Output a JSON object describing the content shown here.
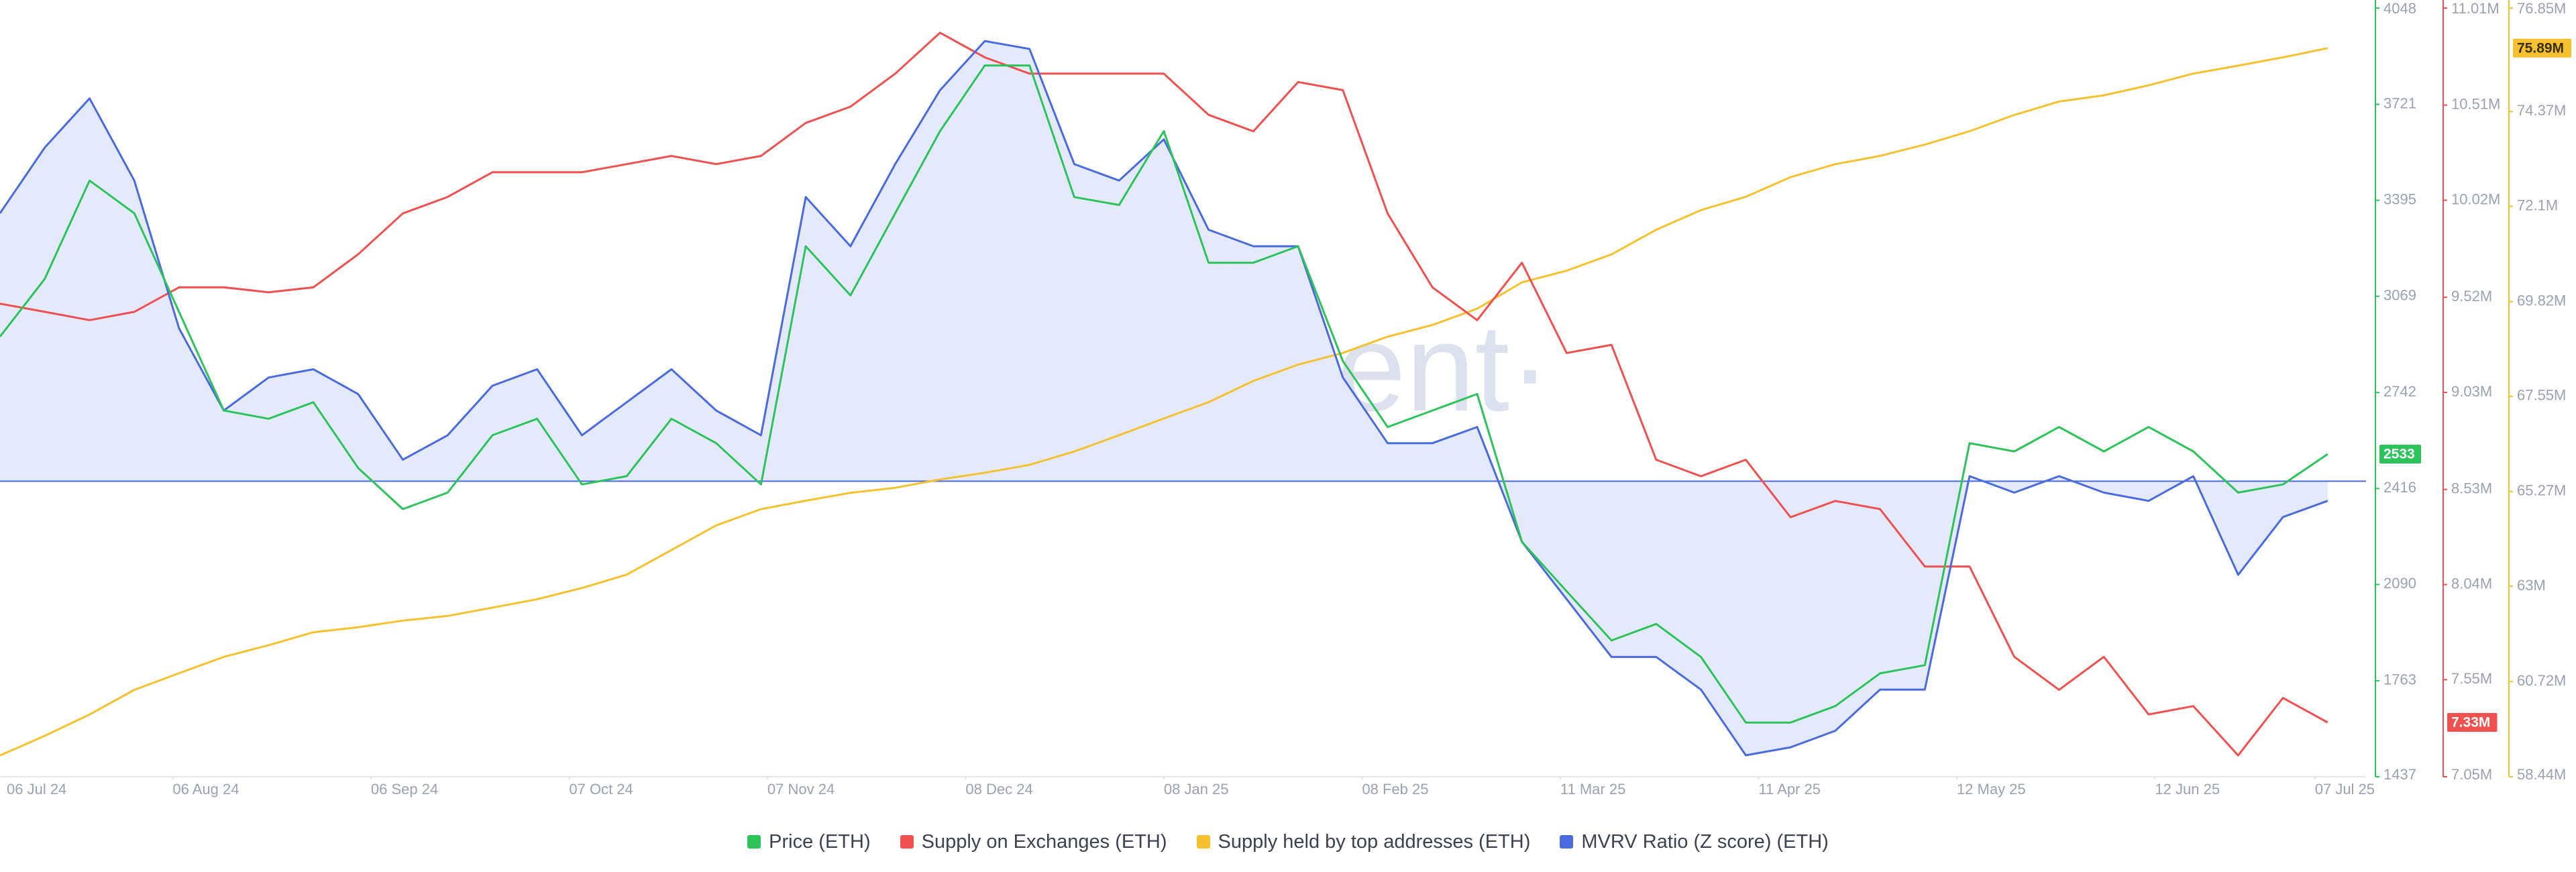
{
  "chart_data": {
    "type": "line",
    "watermark": "·santiment·",
    "x": [
      "2024-07-10",
      "2024-07-17",
      "2024-07-24",
      "2024-07-31",
      "2024-08-07",
      "2024-08-14",
      "2024-08-21",
      "2024-08-28",
      "2024-09-04",
      "2024-09-11",
      "2024-09-18",
      "2024-09-25",
      "2024-10-02",
      "2024-10-09",
      "2024-10-16",
      "2024-10-23",
      "2024-10-30",
      "2024-11-06",
      "2024-11-13",
      "2024-11-20",
      "2024-11-27",
      "2024-12-04",
      "2024-12-11",
      "2024-12-18",
      "2024-12-25",
      "2025-01-01",
      "2025-01-08",
      "2025-01-15",
      "2025-01-22",
      "2025-01-29",
      "2025-02-05",
      "2025-02-12",
      "2025-02-19",
      "2025-02-26",
      "2025-03-05",
      "2025-03-12",
      "2025-03-19",
      "2025-03-26",
      "2025-04-02",
      "2025-04-09",
      "2025-04-16",
      "2025-04-23",
      "2025-04-30",
      "2025-05-07",
      "2025-05-14",
      "2025-05-21",
      "2025-05-28",
      "2025-06-04",
      "2025-06-11",
      "2025-06-18",
      "2025-06-25",
      "2025-07-02",
      "2025-07-09"
    ],
    "xlim": [
      "2024-07-10",
      "2025-07-15"
    ],
    "xticks": [
      {
        "value": "2024-07-06",
        "label": "06 Jul 24"
      },
      {
        "value": "2024-08-06",
        "label": "06 Aug 24"
      },
      {
        "value": "2024-09-06",
        "label": "06 Sep 24"
      },
      {
        "value": "2024-10-07",
        "label": "07 Oct 24"
      },
      {
        "value": "2024-11-07",
        "label": "07 Nov 24"
      },
      {
        "value": "2024-12-08",
        "label": "08 Dec 24"
      },
      {
        "value": "2025-01-08",
        "label": "08 Jan 25"
      },
      {
        "value": "2025-02-08",
        "label": "08 Feb 25"
      },
      {
        "value": "2025-03-11",
        "label": "11 Mar 25"
      },
      {
        "value": "2025-04-11",
        "label": "11 Apr 25"
      },
      {
        "value": "2025-05-12",
        "label": "12 May 25"
      },
      {
        "value": "2025-06-12",
        "label": "12 Jun 25"
      },
      {
        "value": "2025-07-07",
        "label": "07 Jul 25"
      }
    ],
    "ylim": [
      1437,
      4048
    ],
    "yticks": [
      1437,
      1763,
      2090,
      2416,
      2742,
      3069,
      3395,
      3721,
      4048
    ],
    "y2lim": [
      7050000,
      11010000
    ],
    "y2ticks": [
      {
        "value": 7050000,
        "label": "7.05M"
      },
      {
        "value": 7550000,
        "label": "7.55M"
      },
      {
        "value": 8040000,
        "label": "8.04M"
      },
      {
        "value": 8530000,
        "label": "8.53M"
      },
      {
        "value": 9030000,
        "label": "9.03M"
      },
      {
        "value": 9520000,
        "label": "9.52M"
      },
      {
        "value": 10020000,
        "label": "10.02M"
      },
      {
        "value": 10510000,
        "label": "10.51M"
      },
      {
        "value": 11010000,
        "label": "11.01M"
      }
    ],
    "y3lim": [
      58440000,
      76850000
    ],
    "y3ticks": [
      {
        "value": 58440000,
        "label": "58.44M"
      },
      {
        "value": 60720000,
        "label": "60.72M"
      },
      {
        "value": 63000000,
        "label": "63M"
      },
      {
        "value": 65270000,
        "label": "65.27M"
      },
      {
        "value": 67550000,
        "label": "67.55M"
      },
      {
        "value": 69820000,
        "label": "69.82M"
      },
      {
        "value": 72100000,
        "label": "72.1M"
      },
      {
        "value": 74370000,
        "label": "74.37M"
      },
      {
        "value": 76850000,
        "label": "76.85M"
      }
    ],
    "series": [
      {
        "name": "Price (ETH)",
        "color": "#2cc45a",
        "axis": "y",
        "badge": "2533",
        "values": [
          2932,
          3128,
          3462,
          3351,
          3016,
          2681,
          2653,
          2709,
          2486,
          2346,
          2402,
          2597,
          2653,
          2430,
          2458,
          2653,
          2570,
          2430,
          3239,
          3072,
          3351,
          3630,
          3853,
          3853,
          3406,
          3379,
          3630,
          3183,
          3183,
          3239,
          2849,
          2625,
          2681,
          2737,
          2235,
          2067,
          1900,
          1956,
          1844,
          1621,
          1621,
          1677,
          1788,
          1816,
          2570,
          2542,
          2625,
          2542,
          2625,
          2542,
          2402,
          2430,
          2533
        ]
      },
      {
        "name": "Supply on Exchanges (ETH)",
        "color": "#f0504f",
        "axis": "y2",
        "badge": "7.33M",
        "values": [
          9487000,
          9445000,
          9402000,
          9445000,
          9571000,
          9571000,
          9546000,
          9571000,
          9741000,
          9952000,
          10037000,
          10164000,
          10164000,
          10164000,
          10206000,
          10248000,
          10206000,
          10248000,
          10418000,
          10502000,
          10672000,
          10883000,
          10756000,
          10672000,
          10672000,
          10672000,
          10672000,
          10460000,
          10375000,
          10629000,
          10587000,
          9952000,
          9571000,
          9402000,
          9698000,
          9233000,
          9275000,
          8683000,
          8598000,
          8683000,
          8387000,
          8471000,
          8429000,
          8133000,
          8133000,
          7668000,
          7498000,
          7668000,
          7371000,
          7414000,
          7160000,
          7456000,
          7330000
        ]
      },
      {
        "name": "Supply held by top addresses (ETH)",
        "color": "#f5c12e",
        "axis": "y3",
        "badge": "75.89M",
        "values": [
          58950000,
          59420000,
          59930000,
          60520000,
          60920000,
          61310000,
          61590000,
          61900000,
          62020000,
          62180000,
          62290000,
          62490000,
          62690000,
          62960000,
          63280000,
          63870000,
          64460000,
          64850000,
          65050000,
          65240000,
          65360000,
          65560000,
          65720000,
          65910000,
          66230000,
          66620000,
          67020000,
          67410000,
          67920000,
          68310000,
          68590000,
          68980000,
          69260000,
          69650000,
          70280000,
          70560000,
          70950000,
          71540000,
          72010000,
          72330000,
          72800000,
          73110000,
          73310000,
          73580000,
          73900000,
          74290000,
          74610000,
          74760000,
          75000000,
          75280000,
          75470000,
          75670000,
          75890000
        ]
      },
      {
        "name": "MVRV Ratio (Z score) (ETH)",
        "color": "#4a6ae0",
        "axis": "y",
        "fill": "#e4e9fb",
        "baseline": 2441,
        "values": [
          3351,
          3574,
          3741,
          3462,
          2960,
          2681,
          2793,
          2821,
          2737,
          2514,
          2597,
          2765,
          2821,
          2597,
          2709,
          2821,
          2681,
          2597,
          3406,
          3239,
          3518,
          3769,
          3936,
          3909,
          3518,
          3462,
          3602,
          3295,
          3239,
          3239,
          2793,
          2570,
          2570,
          2625,
          2235,
          2040,
          1844,
          1844,
          1733,
          1510,
          1537,
          1593,
          1733,
          1733,
          2458,
          2402,
          2458,
          2402,
          2374,
          2458,
          2123,
          2319,
          2374
        ]
      }
    ]
  }
}
